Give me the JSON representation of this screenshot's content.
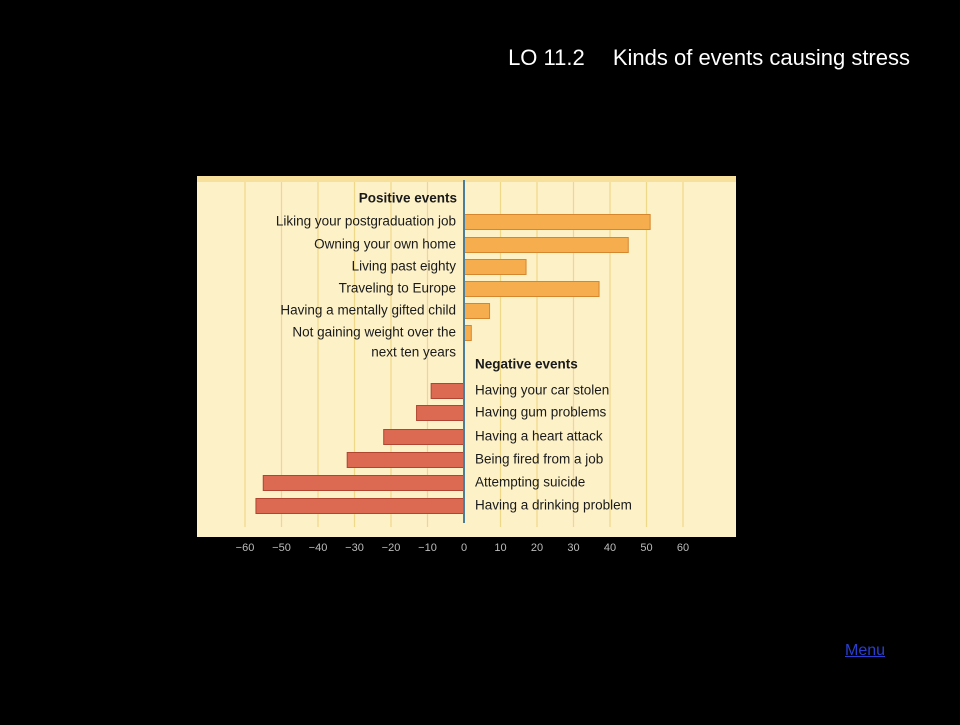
{
  "slide": {
    "code": "LO 11.2",
    "title": "Kinds of events causing stress",
    "menu_label": "Menu"
  },
  "colors": {
    "background": "#000000",
    "panel": "#fdf1c8",
    "panel_stripe": "#f7df9c",
    "positive_bar": "#f6ad4e",
    "positive_bar_edge": "#d6862c",
    "negative_bar": "#dc6a52",
    "negative_bar_edge": "#b2452f",
    "center_line": "#4a7e9a",
    "gridline": "#f0d889"
  },
  "chart_data": {
    "type": "bar",
    "orientation": "horizontal",
    "xlim": [
      -60,
      60
    ],
    "x_ticks": [
      -60,
      -50,
      -40,
      -30,
      -20,
      -10,
      0,
      10,
      20,
      30,
      40,
      50,
      60
    ],
    "x_tick_labels": [
      "−60",
      "−50",
      "−40",
      "−30",
      "−20",
      "−10",
      "0",
      "10",
      "20",
      "30",
      "40",
      "50",
      "60"
    ],
    "grid": true,
    "groups": [
      {
        "name": "Positive events",
        "label_side": "left",
        "items": [
          {
            "label": "Liking your postgraduation job",
            "value": 51
          },
          {
            "label": "Owning your own home",
            "value": 45
          },
          {
            "label": "Living past eighty",
            "value": 17
          },
          {
            "label": "Traveling to Europe",
            "value": 37
          },
          {
            "label": "Having a mentally gifted child",
            "value": 7
          },
          {
            "label": "Not gaining weight over the next ten years",
            "value": 2
          }
        ]
      },
      {
        "name": "Negative events",
        "label_side": "right",
        "items": [
          {
            "label": "Having your car stolen",
            "value": -9
          },
          {
            "label": "Having gum problems",
            "value": -13
          },
          {
            "label": "Having a heart attack",
            "value": -22
          },
          {
            "label": "Being fired from a job",
            "value": -32
          },
          {
            "label": "Attempting suicide",
            "value": -55
          },
          {
            "label": "Having a drinking problem",
            "value": -57
          }
        ]
      }
    ]
  }
}
